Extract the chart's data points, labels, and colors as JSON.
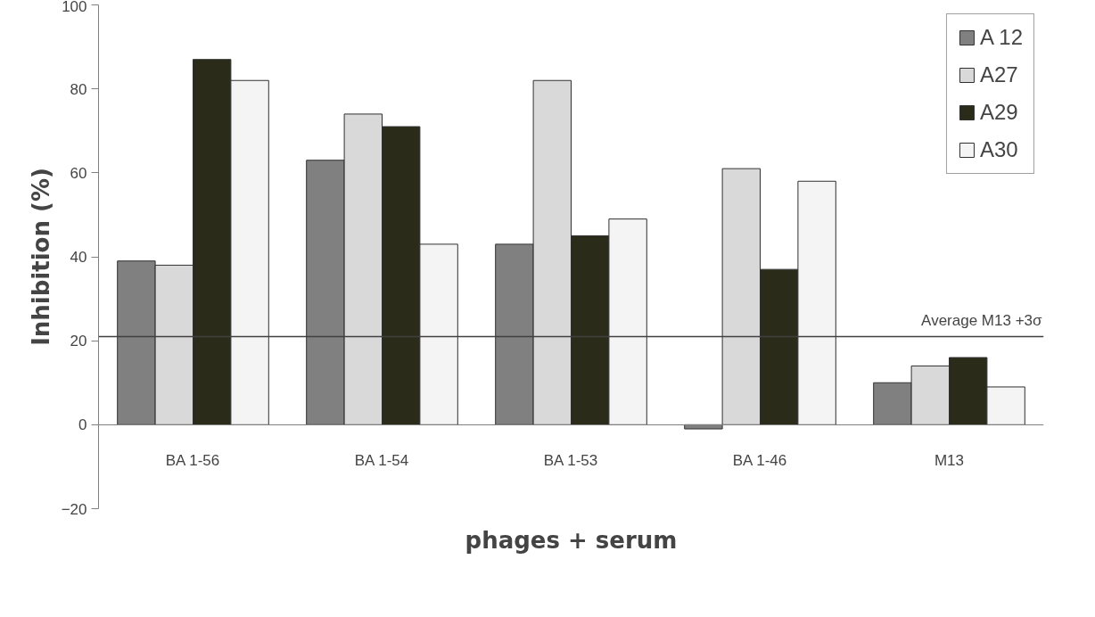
{
  "chart_data": {
    "type": "bar",
    "xlabel": "phages + serum",
    "ylabel": "Inhibition (%)",
    "categories": [
      "BA 1-56",
      "BA 1-54",
      "BA 1-53",
      "BA 1-46",
      "M13"
    ],
    "series": [
      {
        "name": "A 12",
        "color": "#808080",
        "values": [
          39,
          63,
          43,
          -1,
          10
        ]
      },
      {
        "name": "A27",
        "color": "#d9d9d9",
        "values": [
          38,
          74,
          82,
          61,
          14
        ]
      },
      {
        "name": "A29",
        "color": "#2b2b1a",
        "values": [
          87,
          71,
          45,
          37,
          16
        ]
      },
      {
        "name": "A30",
        "color": "#f4f4f4",
        "values": [
          82,
          43,
          49,
          58,
          9
        ]
      }
    ],
    "ylim": [
      -20,
      100
    ],
    "yticks": [
      -20,
      0,
      20,
      40,
      60,
      80,
      100
    ],
    "grid": false,
    "legend": "top right",
    "ref_lines": [
      {
        "axis": "y",
        "value": 21,
        "label": "Average M13 +3σ",
        "color": "#404040"
      }
    ]
  }
}
